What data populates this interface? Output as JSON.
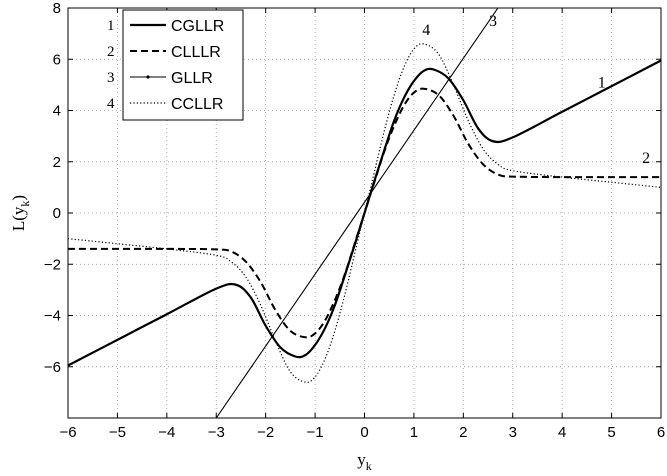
{
  "chart_data": {
    "type": "line",
    "title": "",
    "xlabel": "y_k",
    "ylabel": "L(y_k)",
    "xlim": [
      -6,
      6
    ],
    "ylim": [
      -8,
      8
    ],
    "xticks": [
      -6,
      -5,
      -4,
      -3,
      -2,
      -1,
      0,
      1,
      2,
      3,
      4,
      5,
      6
    ],
    "yticks": [
      -6,
      -4,
      -2,
      0,
      2,
      4,
      6,
      8
    ],
    "grid": true,
    "legend_position": "top-left",
    "series": [
      {
        "name": "CGLLR",
        "id": "1",
        "style": "solid",
        "x": [
          -6,
          -5,
          -4,
          -3,
          -2.6,
          -2.3,
          -2,
          -1.7,
          -1.4,
          -1.2,
          -1.0,
          -0.8,
          -0.6,
          -0.4,
          -0.2,
          0,
          0.2,
          0.4,
          0.6,
          0.8,
          1.0,
          1.2,
          1.4,
          1.7,
          2.0,
          2.3,
          2.6,
          3,
          4,
          5,
          6
        ],
        "y": [
          -5.95,
          -4.95,
          -3.95,
          -2.95,
          -2.8,
          -3.3,
          -4.4,
          -5.25,
          -5.6,
          -5.55,
          -5.15,
          -4.5,
          -3.6,
          -2.45,
          -1.25,
          0,
          1.25,
          2.45,
          3.6,
          4.5,
          5.15,
          5.55,
          5.6,
          5.25,
          4.4,
          3.3,
          2.8,
          2.95,
          3.95,
          4.95,
          5.95
        ]
      },
      {
        "name": "CLLLR",
        "id": "2",
        "style": "dashed",
        "x": [
          -6,
          -5,
          -4,
          -3,
          -2.7,
          -2.4,
          -2.1,
          -1.8,
          -1.5,
          -1.2,
          -1.0,
          -0.8,
          -0.6,
          -0.4,
          -0.2,
          0,
          0.2,
          0.4,
          0.6,
          0.8,
          1.0,
          1.2,
          1.5,
          1.8,
          2.1,
          2.4,
          2.7,
          3,
          4,
          5,
          6
        ],
        "y": [
          -1.4,
          -1.4,
          -1.4,
          -1.42,
          -1.5,
          -1.9,
          -2.7,
          -3.8,
          -4.6,
          -4.85,
          -4.7,
          -4.2,
          -3.4,
          -2.4,
          -1.2,
          0,
          1.2,
          2.4,
          3.4,
          4.2,
          4.7,
          4.85,
          4.6,
          3.8,
          2.7,
          1.9,
          1.5,
          1.42,
          1.4,
          1.4,
          1.4
        ]
      },
      {
        "name": "GLLR",
        "id": "3",
        "style": "thin",
        "x": [
          -3,
          2.7
        ],
        "y": [
          -8,
          8
        ]
      },
      {
        "name": "CCLLR",
        "id": "4",
        "style": "dotted",
        "x": [
          -6,
          -5,
          -4,
          -3,
          -2.7,
          -2.4,
          -2.1,
          -1.8,
          -1.5,
          -1.2,
          -1.0,
          -0.8,
          -0.6,
          -0.4,
          -0.2,
          0,
          0.2,
          0.4,
          0.6,
          0.8,
          1.0,
          1.2,
          1.5,
          1.8,
          2.1,
          2.4,
          2.7,
          3,
          4,
          5,
          6
        ],
        "y": [
          -1.0,
          -1.2,
          -1.4,
          -1.65,
          -1.9,
          -2.5,
          -3.6,
          -5.0,
          -6.2,
          -6.6,
          -6.4,
          -5.7,
          -4.6,
          -3.2,
          -1.6,
          0,
          1.6,
          3.2,
          4.6,
          5.7,
          6.4,
          6.6,
          6.2,
          5.0,
          3.6,
          2.5,
          1.9,
          1.65,
          1.4,
          1.2,
          1.0
        ]
      }
    ],
    "curve_labels": [
      {
        "text": "1",
        "x": 4.8,
        "y": 4.9
      },
      {
        "text": "2",
        "x": 5.7,
        "y": 1.95
      },
      {
        "text": "3",
        "x": 2.6,
        "y": 7.3
      },
      {
        "text": "4",
        "x": 1.25,
        "y": 6.95
      }
    ],
    "legend": [
      {
        "num": "1",
        "label": "CGLLR",
        "style": "solid"
      },
      {
        "num": "2",
        "label": "CLLLR",
        "style": "dashed"
      },
      {
        "num": "3",
        "label": "GLLR",
        "style": "thin"
      },
      {
        "num": "4",
        "label": "CCLLR",
        "style": "dotted"
      }
    ]
  }
}
